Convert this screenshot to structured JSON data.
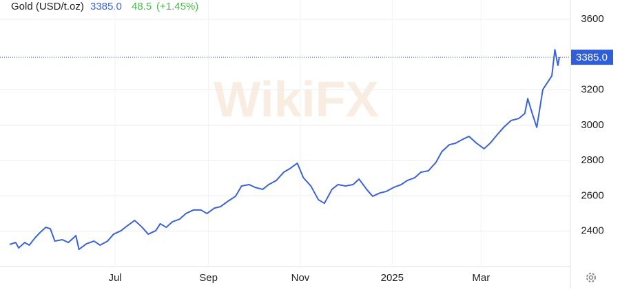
{
  "chart_data": {
    "type": "line",
    "title": "Gold (USD/t.oz)",
    "price": "3385.0",
    "change": "48.5",
    "change_pct": "(+1.45%)",
    "watermark": "WikiFX",
    "last_value": 3385,
    "last_label": "3385.0",
    "xlim": [
      0,
      365
    ],
    "xticks": [
      {
        "value": 70,
        "label": "Jul"
      },
      {
        "value": 132,
        "label": "Sep"
      },
      {
        "value": 193,
        "label": "Nov"
      },
      {
        "value": 254,
        "label": "2025"
      },
      {
        "value": 313,
        "label": "Mar"
      }
    ],
    "ylim": [
      2200,
      3709
    ],
    "yticks": [
      2400,
      2600,
      2800,
      3000,
      3200,
      3600
    ],
    "grid": true,
    "series": [
      {
        "name": "Gold",
        "color": "#3a62d8",
        "x": [
          0,
          4,
          6,
          10,
          13,
          17,
          20,
          24,
          27,
          30,
          35,
          39,
          44,
          46,
          51,
          56,
          60,
          65,
          69,
          74,
          78,
          83,
          88,
          92,
          97,
          100,
          104,
          108,
          113,
          117,
          122,
          127,
          131,
          136,
          140,
          145,
          150,
          154,
          159,
          163,
          168,
          172,
          177,
          182,
          186,
          191,
          195,
          200,
          205,
          209,
          214,
          218,
          223,
          228,
          232,
          237,
          241,
          246,
          250,
          255,
          260,
          264,
          269,
          273,
          278,
          283,
          287,
          292,
          296,
          301,
          305,
          310,
          315,
          319,
          324,
          328,
          333,
          338,
          342,
          344,
          347,
          350,
          354,
          357,
          360,
          362,
          364,
          365
        ],
        "values": [
          2325,
          2336,
          2305,
          2336,
          2321,
          2364,
          2391,
          2422,
          2414,
          2344,
          2352,
          2336,
          2375,
          2297,
          2329,
          2344,
          2321,
          2344,
          2383,
          2403,
          2430,
          2461,
          2422,
          2383,
          2403,
          2442,
          2422,
          2453,
          2469,
          2500,
          2520,
          2520,
          2500,
          2531,
          2539,
          2570,
          2598,
          2656,
          2664,
          2648,
          2637,
          2664,
          2687,
          2734,
          2754,
          2785,
          2703,
          2656,
          2578,
          2558,
          2637,
          2664,
          2656,
          2664,
          2695,
          2637,
          2598,
          2617,
          2625,
          2648,
          2664,
          2687,
          2703,
          2734,
          2742,
          2789,
          2851,
          2890,
          2898,
          2921,
          2937,
          2898,
          2867,
          2898,
          2949,
          2988,
          3027,
          3038,
          3066,
          3151,
          3066,
          2988,
          3202,
          3241,
          3280,
          3428,
          3339,
          3385
        ]
      }
    ]
  }
}
